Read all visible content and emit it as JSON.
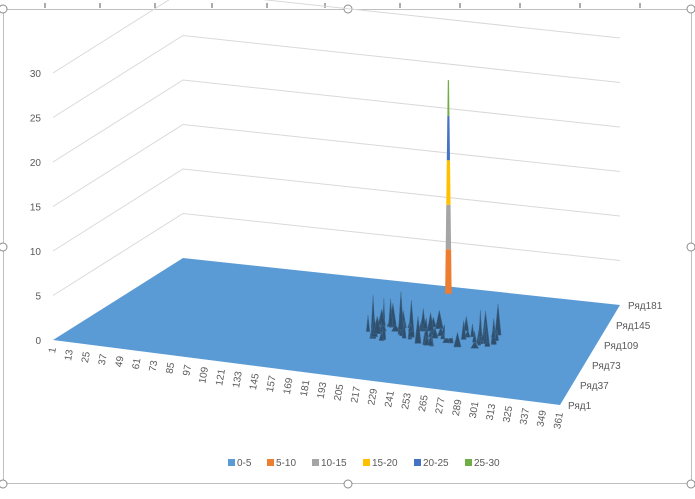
{
  "chart_data": {
    "type": "surface3d",
    "title": "",
    "z_axis": {
      "ticks": [
        "0",
        "5",
        "10",
        "15",
        "20",
        "25",
        "30"
      ],
      "range": [
        0,
        30
      ]
    },
    "x_axis": {
      "ticks": [
        "1",
        "13",
        "25",
        "37",
        "49",
        "61",
        "73",
        "85",
        "97",
        "109",
        "121",
        "133",
        "145",
        "157",
        "169",
        "181",
        "193",
        "205",
        "217",
        "229",
        "241",
        "253",
        "265",
        "277",
        "289",
        "301",
        "313",
        "325",
        "337",
        "349",
        "361"
      ]
    },
    "y_axis": {
      "ticks": [
        "Ряд1",
        "Ряд37",
        "Ряд73",
        "Ряд109",
        "Ряд145",
        "Ряд181"
      ]
    },
    "peak": {
      "x": 253,
      "series": "Ряд91",
      "value": 29
    },
    "bumps_description_values": {
      "x_range": [
        193,
        289
      ],
      "series_range": [
        "Ряд73",
        "Ряд109"
      ],
      "max_value": 5
    },
    "legend": [
      {
        "label": "0-5",
        "color": "#5b9bd5"
      },
      {
        "label": "5-10",
        "color": "#ed7d31"
      },
      {
        "label": "10-15",
        "color": "#a5a5a5"
      },
      {
        "label": "15-20",
        "color": "#ffc000"
      },
      {
        "label": "20-25",
        "color": "#4472c4"
      },
      {
        "label": "25-30",
        "color": "#70ad47"
      }
    ],
    "legend_position": "bottom",
    "grid": true
  }
}
